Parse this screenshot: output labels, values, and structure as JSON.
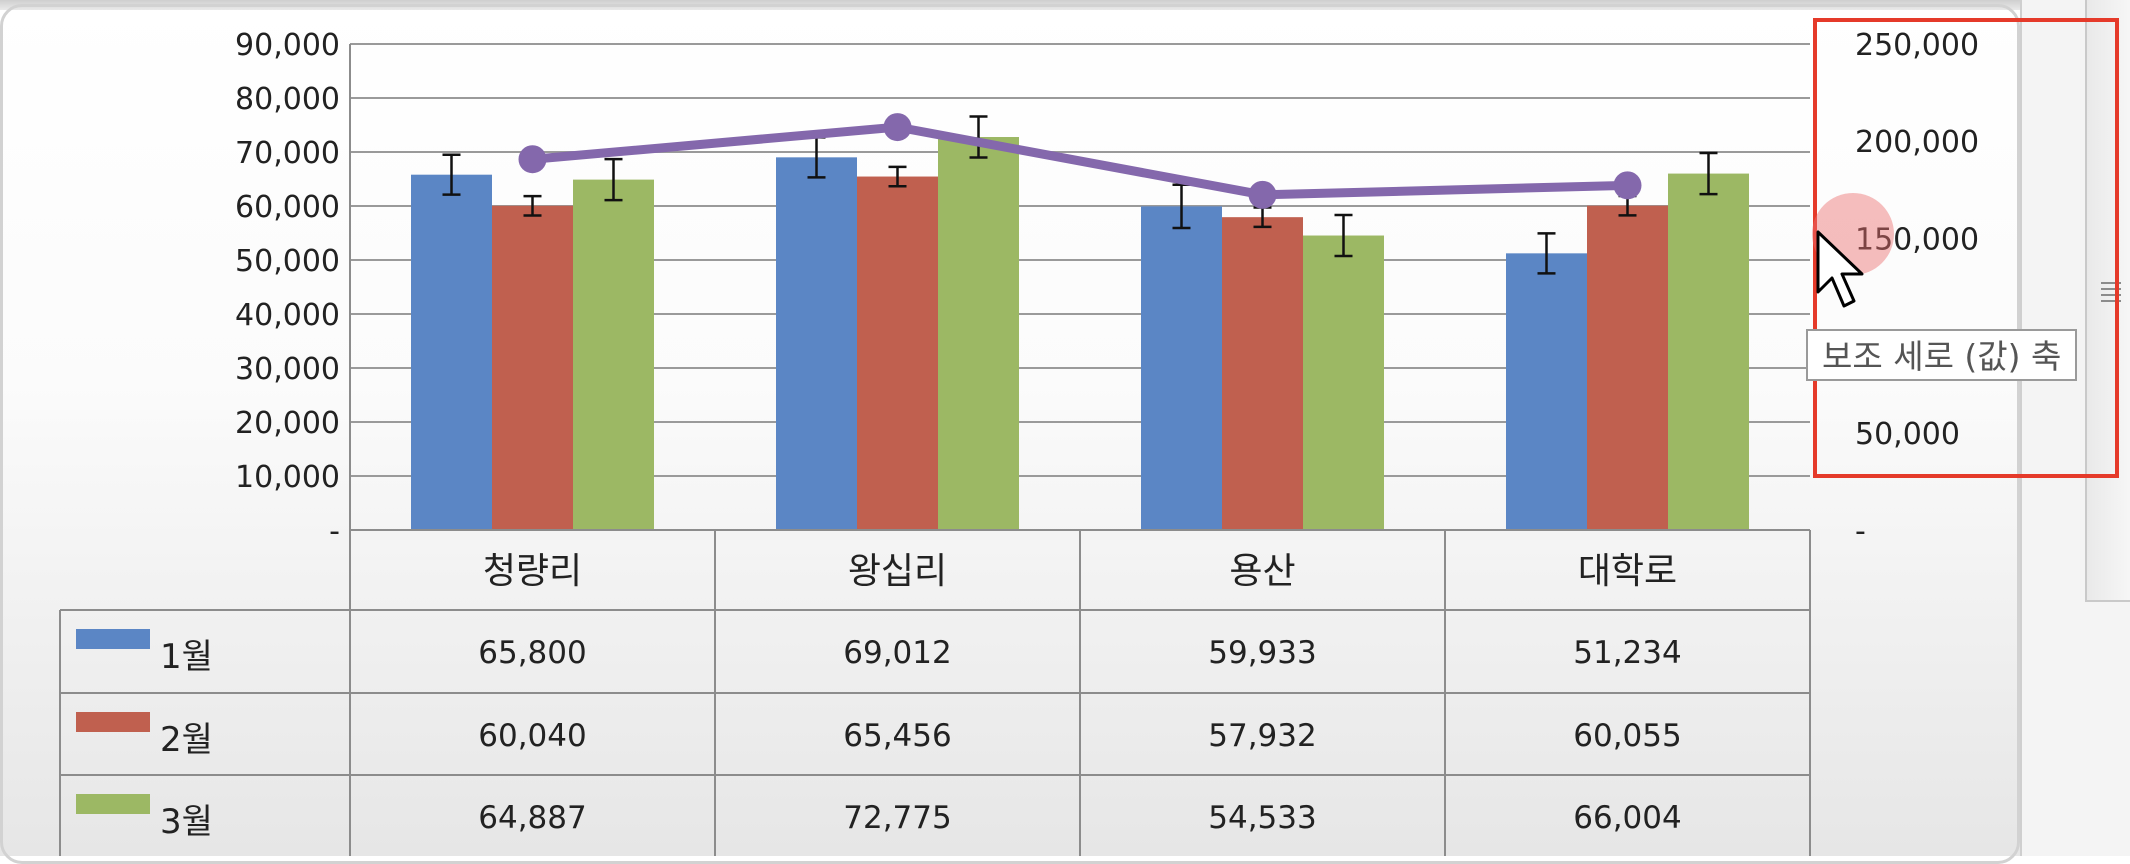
{
  "tooltip": {
    "text": "보조 세로 (값) 축"
  },
  "colors": {
    "series1": "#5b86c5",
    "series2": "#c0604f",
    "series3": "#9cb864",
    "line": "#8468ac",
    "highlight": "#e53a2a"
  },
  "chart_data": {
    "type": "bar",
    "categories": [
      "청량리",
      "왕십리",
      "용산",
      "대학로"
    ],
    "series": [
      {
        "name": "1월",
        "type": "bar",
        "axis": "primary",
        "values": [
          65800,
          69012,
          59933,
          51234
        ],
        "error": [
          3700,
          3700,
          4000,
          3700
        ]
      },
      {
        "name": "2월",
        "type": "bar",
        "axis": "primary",
        "values": [
          60040,
          65456,
          57932,
          60055
        ],
        "error": [
          1800,
          1800,
          1800,
          1800
        ]
      },
      {
        "name": "3월",
        "type": "bar",
        "axis": "primary",
        "values": [
          64887,
          72775,
          54533,
          66004
        ],
        "error": [
          3800,
          3800,
          3800,
          3800
        ]
      },
      {
        "type": "line",
        "axis": "secondary",
        "values": [
          190727,
          207243,
          172398,
          177293
        ]
      }
    ],
    "ylim": [
      0,
      90000
    ],
    "y_ticks": [
      "-",
      "10,000",
      "20,000",
      "30,000",
      "40,000",
      "50,000",
      "60,000",
      "70,000",
      "80,000",
      "90,000"
    ],
    "y2lim": [
      0,
      250000
    ],
    "y2_ticks": [
      "-",
      "50,000",
      "150,000",
      "200,000",
      "250,000"
    ],
    "data_table": {
      "rows": [
        {
          "label": "1월",
          "cells": [
            "65,800",
            "69,012",
            "59,933",
            "51,234"
          ]
        },
        {
          "label": "2월",
          "cells": [
            "60,040",
            "65,456",
            "57,932",
            "60,055"
          ]
        },
        {
          "label": "3월",
          "cells": [
            "64,887",
            "72,775",
            "54,533",
            "66,004"
          ]
        }
      ]
    },
    "grid": true,
    "legend": "data-table"
  }
}
